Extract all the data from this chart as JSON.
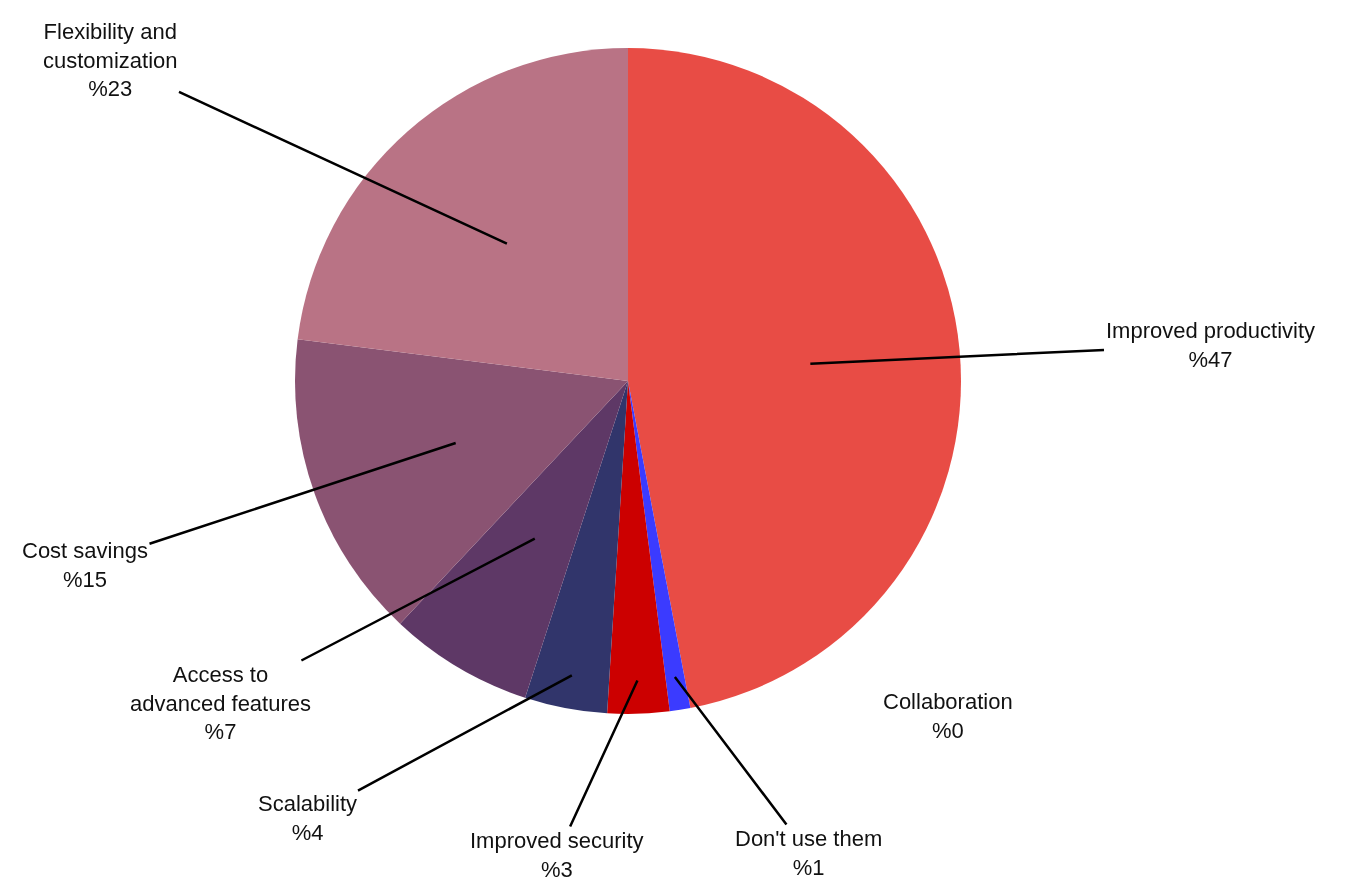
{
  "chart_data": {
    "type": "pie",
    "categories": [
      "Improved productivity",
      "Don't use them",
      "Collaboration",
      "Improved security",
      "Scalability",
      "Access to advanced features",
      "Cost savings",
      "Flexibility and customization"
    ],
    "values": [
      47,
      1,
      0,
      3,
      4,
      7,
      15,
      23
    ],
    "value_labels": [
      "%47",
      "%1",
      "%0",
      "%3",
      "%4",
      "%7",
      "%15",
      "%23"
    ],
    "colors": [
      "#e84c45",
      "#3b3bff",
      "#9a9a9a",
      "#cc0000",
      "#31356b",
      "#5e3866",
      "#8a5372",
      "#b97385"
    ],
    "legend": false
  }
}
